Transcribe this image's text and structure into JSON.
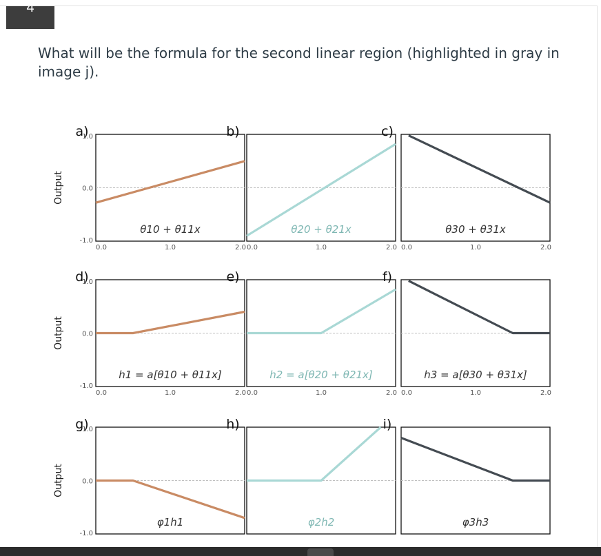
{
  "question": {
    "number": "4",
    "text": "What will be the formula for the second linear region (highlighted in gray in image j)."
  },
  "colors": {
    "unit1": "#c98b64",
    "unit2": "#a9d8d5",
    "unit3": "#444b52",
    "axis": "#111111",
    "zeroline": "#bfbfbf",
    "tick_text": "#555555"
  },
  "chart_data": {
    "type": "line",
    "xlim": [
      0.0,
      2.0
    ],
    "ylim": [
      -1.0,
      1.0
    ],
    "ylabel": "Output",
    "xticklabels": [
      "0.0",
      "1.0",
      "2.0"
    ],
    "yticklabels": [
      "1.0",
      "0.0",
      "-1.0"
    ],
    "panels": [
      {
        "label": "a)",
        "annotation": "θ10 + θ11x",
        "series": 1,
        "x": [
          0,
          2
        ],
        "y": [
          -0.28,
          0.5
        ]
      },
      {
        "label": "b)",
        "annotation": "θ20 + θ21x",
        "series": 2,
        "x": [
          0,
          2
        ],
        "y": [
          -0.9,
          0.82
        ]
      },
      {
        "label": "c)",
        "annotation": "θ30 + θ31x",
        "series": 3,
        "x": [
          0.1,
          2
        ],
        "y": [
          0.98,
          -0.28
        ]
      },
      {
        "label": "d)",
        "annotation": "h1 = a[θ10 + θ11x]",
        "series": 1,
        "x": [
          0,
          0.5,
          2
        ],
        "y": [
          0,
          0,
          0.4
        ]
      },
      {
        "label": "e)",
        "annotation": "h2 = a[θ20 + θ21x]",
        "series": 2,
        "x": [
          0,
          1.0,
          2
        ],
        "y": [
          0,
          0,
          0.82
        ]
      },
      {
        "label": "f)",
        "annotation": "h3 = a[θ30 + θ31x]",
        "series": 3,
        "x": [
          0.1,
          1.5,
          2
        ],
        "y": [
          0.98,
          0,
          0
        ]
      },
      {
        "label": "g)",
        "annotation": "φ1h1",
        "series": 1,
        "x": [
          0,
          0.5,
          2
        ],
        "y": [
          0,
          0,
          -0.7
        ]
      },
      {
        "label": "h)",
        "annotation": "φ2h2",
        "series": 2,
        "x": [
          0,
          1.0,
          1.8
        ],
        "y": [
          0,
          0,
          1.0
        ]
      },
      {
        "label": "i)",
        "annotation": "φ3h3",
        "series": 3,
        "x": [
          0,
          1.5,
          2
        ],
        "y": [
          0.8,
          0,
          0
        ]
      }
    ]
  }
}
